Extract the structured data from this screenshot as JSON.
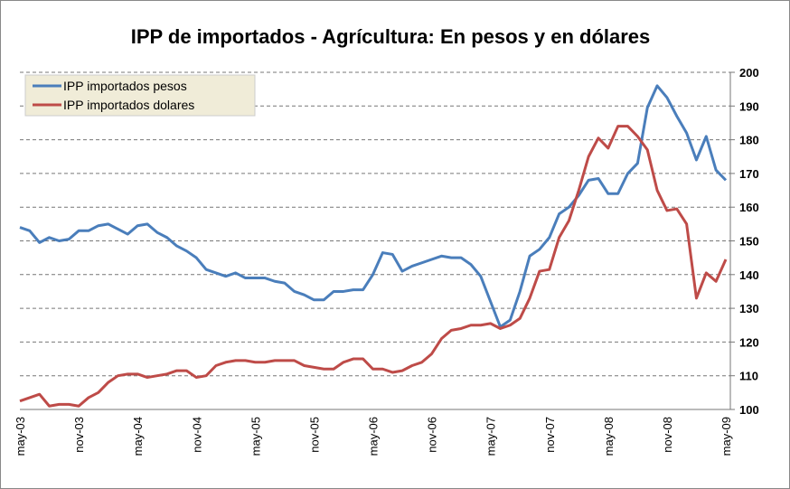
{
  "chart_data": {
    "type": "line",
    "title": "IPP de importados - Agrícultura: En pesos y en dólares",
    "categories": [
      "may-03",
      null,
      null,
      null,
      null,
      null,
      "nov-03",
      null,
      null,
      null,
      null,
      null,
      "may-04",
      null,
      null,
      null,
      null,
      null,
      "nov-04",
      null,
      null,
      null,
      null,
      null,
      "may-05",
      null,
      null,
      null,
      null,
      null,
      "nov-05",
      null,
      null,
      null,
      null,
      null,
      "may-06",
      null,
      null,
      null,
      null,
      null,
      "nov-06",
      null,
      null,
      null,
      null,
      null,
      "may-07",
      null,
      null,
      null,
      null,
      null,
      "nov-07",
      null,
      null,
      null,
      null,
      null,
      "may-08",
      null,
      null,
      null,
      null,
      null,
      "nov-08",
      null,
      null,
      null,
      null,
      null,
      "may-09"
    ],
    "series": [
      {
        "name": "IPP importados pesos",
        "color": "#4a7ebb",
        "values": [
          154,
          153,
          149.5,
          151,
          150,
          150.5,
          153,
          153,
          154.5,
          155,
          153.5,
          152,
          154.5,
          155,
          152.5,
          151,
          148.5,
          147,
          145,
          141.5,
          140.5,
          139.5,
          140.5,
          139,
          139,
          139,
          138,
          137.5,
          135,
          134,
          132.5,
          132.5,
          135,
          135,
          135.5,
          135.5,
          140,
          146.5,
          146,
          141,
          142.5,
          143.5,
          144.5,
          145.5,
          145,
          145,
          143,
          139.5,
          132,
          124.5,
          126.5,
          135,
          145.5,
          147.5,
          151,
          158,
          160,
          163.5,
          168,
          168.5,
          164,
          164,
          170,
          173,
          189.5,
          196,
          192.5,
          187,
          182,
          174,
          181,
          171,
          168
        ]
      },
      {
        "name": "IPP importados dolares",
        "color": "#be4b48",
        "values": [
          102.5,
          103.5,
          104.5,
          101,
          101.5,
          101.5,
          101,
          103.5,
          105,
          108,
          110,
          110.5,
          110.5,
          109.5,
          110,
          110.5,
          111.5,
          111.5,
          109.5,
          110,
          113,
          114,
          114.5,
          114.5,
          114,
          114,
          114.5,
          114.5,
          114.5,
          113,
          112.5,
          112,
          112,
          114,
          115,
          115,
          112,
          112,
          111,
          111.5,
          113,
          114,
          116.5,
          121,
          123.5,
          124,
          125,
          125,
          125.5,
          124,
          125,
          127,
          133,
          141,
          141.5,
          151,
          156,
          165,
          175,
          180.5,
          177.5,
          184,
          184,
          181,
          177,
          165,
          159,
          159.5,
          155,
          133,
          140.5,
          138,
          144.5
        ]
      }
    ],
    "ylim": [
      100,
      200
    ],
    "yticks": [
      100,
      110,
      120,
      130,
      140,
      150,
      160,
      170,
      180,
      190,
      200
    ],
    "grid": true,
    "legend": "top-left"
  }
}
